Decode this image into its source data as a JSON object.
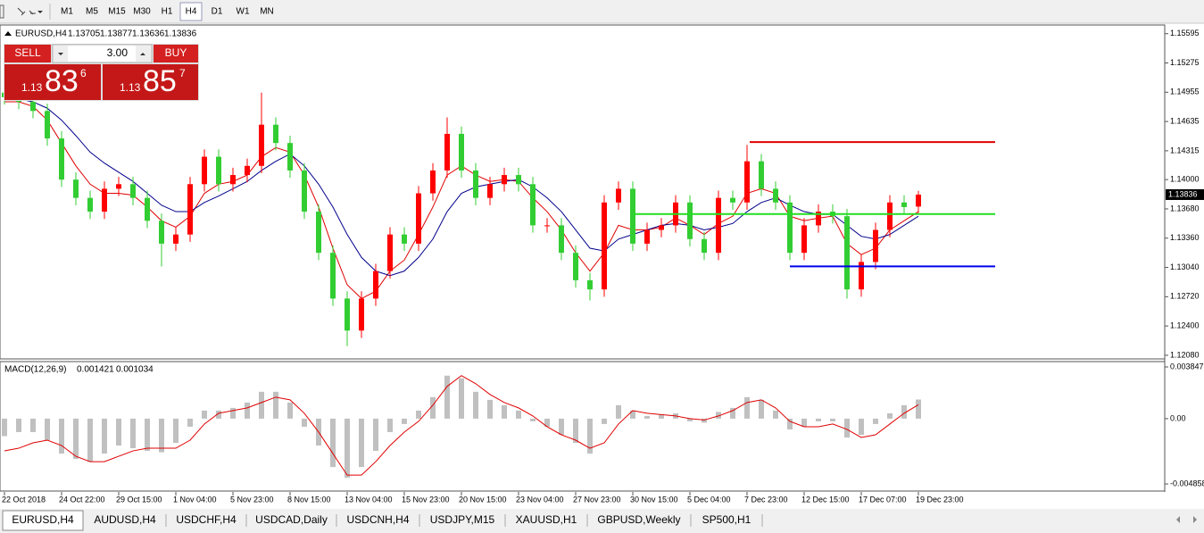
{
  "toolbar": {
    "timeframes": [
      "M1",
      "M5",
      "M15",
      "M30",
      "H1",
      "H4",
      "D1",
      "W1",
      "MN"
    ],
    "selected": 5
  },
  "trade_panel": {
    "sell": "SELL",
    "buy": "BUY",
    "lots": "3.00",
    "sell_price": {
      "prefix": "1.13",
      "main": "83",
      "sup": "6"
    },
    "buy_price": {
      "prefix": "1.13",
      "main": "85",
      "sup": "7"
    }
  },
  "chart_data": [
    {
      "type": "candlestick",
      "title": "EURUSD,H4",
      "header_values": [
        1.13705,
        1.13877,
        1.13636,
        1.13836
      ],
      "categories": [
        "22 Oct 2018",
        null,
        null,
        null,
        "24 Oct 22:00",
        null,
        null,
        null,
        "29 Oct 15:00",
        null,
        null,
        null,
        "1 Nov 04:00",
        null,
        null,
        null,
        "5 Nov 23:00",
        null,
        null,
        null,
        "8 Nov 15:00",
        null,
        null,
        null,
        "13 Nov 04:00",
        null,
        null,
        null,
        "15 Nov 23:00",
        null,
        null,
        null,
        "20 Nov 15:00",
        null,
        null,
        null,
        "23 Nov 04:00",
        null,
        null,
        null,
        "27 Nov 23:00",
        null,
        null,
        null,
        "30 Nov 15:00",
        null,
        null,
        null,
        "5 Dec 04:00",
        null,
        null,
        null,
        "7 Dec 23:00",
        null,
        null,
        null,
        "12 Dec 15:00",
        null,
        null,
        null,
        "17 Dec 07:00",
        null,
        null,
        null,
        "19 Dec 23:00"
      ],
      "open": [
        1.1495,
        1.149,
        1.1485,
        1.1475,
        1.1445,
        1.14,
        1.138,
        1.1365,
        1.139,
        1.1395,
        1.138,
        1.1355,
        1.133,
        1.134,
        1.1395,
        1.1425,
        1.1395,
        1.1405,
        1.1415,
        1.146,
        1.144,
        1.141,
        1.1365,
        1.132,
        1.127,
        1.1235,
        1.127,
        1.13,
        1.134,
        1.133,
        1.1385,
        1.141,
        1.145,
        1.141,
        1.138,
        1.1395,
        1.1405,
        1.1395,
        1.135,
        1.135,
        1.132,
        1.129,
        1.128,
        1.1375,
        1.139,
        1.133,
        1.1345,
        1.135,
        1.1375,
        1.1335,
        1.132,
        1.138,
        1.1375,
        1.142,
        1.139,
        1.1375,
        1.132,
        1.135,
        1.1365,
        1.136,
        1.128,
        1.131,
        1.1345,
        1.1375,
        1.13705
      ],
      "high": [
        1.1503,
        1.1498,
        1.1493,
        1.1483,
        1.1453,
        1.1408,
        1.1388,
        1.1398,
        1.1403,
        1.1403,
        1.1388,
        1.1363,
        1.1348,
        1.1403,
        1.1433,
        1.1433,
        1.1413,
        1.1423,
        1.1495,
        1.1468,
        1.1448,
        1.1418,
        1.1373,
        1.1328,
        1.1278,
        1.1278,
        1.1308,
        1.1348,
        1.1348,
        1.1393,
        1.1418,
        1.1468,
        1.1458,
        1.1418,
        1.1403,
        1.1413,
        1.1413,
        1.1403,
        1.1358,
        1.1358,
        1.1328,
        1.1298,
        1.1383,
        1.1398,
        1.1398,
        1.1353,
        1.1358,
        1.1383,
        1.1383,
        1.1343,
        1.1388,
        1.1388,
        1.1438,
        1.1428,
        1.1398,
        1.1383,
        1.1358,
        1.1373,
        1.1373,
        1.1368,
        1.1318,
        1.1353,
        1.1383,
        1.1383,
        1.13877
      ],
      "low": [
        1.1482,
        1.1477,
        1.1467,
        1.1437,
        1.1392,
        1.1372,
        1.1357,
        1.1357,
        1.1382,
        1.1372,
        1.1347,
        1.1305,
        1.1322,
        1.1332,
        1.1387,
        1.1387,
        1.1387,
        1.1397,
        1.1407,
        1.1432,
        1.1402,
        1.1357,
        1.1312,
        1.1262,
        1.1218,
        1.1227,
        1.1262,
        1.1292,
        1.1322,
        1.1322,
        1.1377,
        1.1402,
        1.1402,
        1.1372,
        1.1372,
        1.1387,
        1.1387,
        1.1342,
        1.1342,
        1.1312,
        1.1282,
        1.1268,
        1.1272,
        1.1367,
        1.1322,
        1.1322,
        1.1337,
        1.1342,
        1.1327,
        1.1312,
        1.1312,
        1.1367,
        1.1367,
        1.1382,
        1.1367,
        1.1312,
        1.1312,
        1.1342,
        1.1352,
        1.127,
        1.1272,
        1.1302,
        1.1337,
        1.1362,
        1.13636
      ],
      "close": [
        1.149,
        1.1485,
        1.1475,
        1.1445,
        1.14,
        1.138,
        1.1365,
        1.139,
        1.1395,
        1.138,
        1.1355,
        1.133,
        1.134,
        1.1395,
        1.1425,
        1.1395,
        1.1405,
        1.1415,
        1.146,
        1.144,
        1.141,
        1.1365,
        1.132,
        1.127,
        1.1235,
        1.127,
        1.13,
        1.134,
        1.133,
        1.1385,
        1.141,
        1.145,
        1.141,
        1.138,
        1.1395,
        1.1405,
        1.1395,
        1.135,
        1.135,
        1.132,
        1.129,
        1.128,
        1.1375,
        1.139,
        1.133,
        1.1345,
        1.135,
        1.1375,
        1.1335,
        1.132,
        1.138,
        1.1375,
        1.142,
        1.139,
        1.1375,
        1.132,
        1.135,
        1.1365,
        1.136,
        1.128,
        1.131,
        1.1345,
        1.1375,
        1.137,
        1.13836
      ],
      "up_color": "#ff0000",
      "down_color": "#32cd32",
      "series": [
        {
          "color": "#e00000",
          "values": [
            1.1485,
            1.1485,
            1.148,
            1.1465,
            1.144,
            1.1415,
            1.1395,
            1.1385,
            1.1385,
            1.1383,
            1.137,
            1.1355,
            1.1348,
            1.136,
            1.1385,
            1.1395,
            1.1398,
            1.1405,
            1.1425,
            1.1435,
            1.143,
            1.1405,
            1.137,
            1.1325,
            1.1285,
            1.127,
            1.1278,
            1.13,
            1.1312,
            1.134,
            1.137,
            1.1405,
            1.1415,
            1.1405,
            1.1398,
            1.14,
            1.1398,
            1.138,
            1.1365,
            1.1345,
            1.132,
            1.13,
            1.132,
            1.135,
            1.1345,
            1.1345,
            1.1348,
            1.1358,
            1.135,
            1.134,
            1.1352,
            1.136,
            1.1385,
            1.139,
            1.1385,
            1.136,
            1.1355,
            1.1358,
            1.136,
            1.133,
            1.1318,
            1.1325,
            1.1345,
            1.1355,
            1.1365
          ]
        },
        {
          "color": "#00008b",
          "values": [
            1.149,
            1.1488,
            1.1485,
            1.1478,
            1.1465,
            1.1448,
            1.143,
            1.1418,
            1.1408,
            1.1398,
            1.1385,
            1.1372,
            1.1365,
            1.1365,
            1.1375,
            1.1382,
            1.139,
            1.1398,
            1.141,
            1.142,
            1.1428,
            1.1415,
            1.1395,
            1.137,
            1.134,
            1.1315,
            1.13,
            1.1295,
            1.13,
            1.1315,
            1.1335,
            1.1365,
            1.1385,
            1.1392,
            1.1395,
            1.1398,
            1.14,
            1.1392,
            1.138,
            1.1365,
            1.1345,
            1.1325,
            1.1322,
            1.1335,
            1.134,
            1.1345,
            1.135,
            1.1352,
            1.135,
            1.1345,
            1.1348,
            1.1352,
            1.1365,
            1.1375,
            1.138,
            1.1372,
            1.1365,
            1.1362,
            1.1362,
            1.135,
            1.1338,
            1.1335,
            1.134,
            1.135,
            1.136
          ]
        }
      ],
      "hlines": [
        {
          "value": 1.1441,
          "color": "#e00000"
        },
        {
          "value": 1.13624,
          "color": "#22dd22"
        },
        {
          "value": 1.13051,
          "color": "#0000ee"
        }
      ],
      "ylim": [
        1.1205,
        1.1568
      ],
      "yticks": [
        1.15595,
        1.15275,
        1.14955,
        1.14635,
        1.14315,
        {
          "value": 1.14,
          "label": "1.14000"
        },
        {
          "value": 1.1368,
          "label": "1.13680"
        },
        {
          "value": 1.1336,
          "label": "1.13360"
        },
        {
          "value": 1.1304,
          "label": "1.13040"
        },
        {
          "value": 1.1272,
          "label": "1.12720"
        },
        {
          "value": 1.124,
          "label": "1.12400"
        },
        {
          "value": 1.1208,
          "label": "1.12080"
        }
      ]
    },
    {
      "type": "macd",
      "title": "MACD(12,26,9)",
      "header_values": [
        0.001421,
        0.001034
      ],
      "histogram": {
        "color": "#c0c0c0",
        "values": [
          -0.0013,
          -0.001,
          -0.001,
          -0.0016,
          -0.0026,
          -0.003,
          -0.0032,
          -0.0026,
          -0.002,
          -0.0022,
          -0.0024,
          -0.0025,
          -0.0018,
          -0.0006,
          0.0006,
          0.0006,
          0.0008,
          0.0012,
          0.002,
          0.002,
          0.0012,
          -0.0006,
          -0.002,
          -0.0036,
          -0.0044,
          -0.0036,
          -0.0024,
          -0.001,
          -0.0004,
          0.0006,
          0.0016,
          0.0032,
          0.003,
          0.002,
          0.0014,
          0.001,
          0.0006,
          -0.0002,
          -0.0006,
          -0.0012,
          -0.0018,
          -0.0026,
          -0.0004,
          0.001,
          0.0006,
          0.0002,
          0.0003,
          0.0004,
          -0.0002,
          -0.0003,
          0.0005,
          0.0008,
          0.0016,
          0.0014,
          0.0006,
          -0.0008,
          -0.0006,
          -0.0002,
          -0.0002,
          -0.0014,
          -0.0012,
          -0.0004,
          0.0004,
          0.001,
          0.001421
        ]
      },
      "signal": {
        "color": "#e00000",
        "values": [
          -0.0024,
          -0.0022,
          -0.0018,
          -0.0016,
          -0.002,
          -0.0028,
          -0.0032,
          -0.0032,
          -0.0028,
          -0.0024,
          -0.0022,
          -0.0022,
          -0.0022,
          -0.0016,
          -0.0004,
          0.0004,
          0.0006,
          0.0008,
          0.0012,
          0.0016,
          0.0014,
          0.0004,
          -0.001,
          -0.0026,
          -0.0042,
          -0.0042,
          -0.0032,
          -0.002,
          -0.001,
          -0.0002,
          0.001,
          0.0024,
          0.0032,
          0.0026,
          0.0018,
          0.0012,
          0.0008,
          0.0002,
          -0.0006,
          -0.0012,
          -0.0016,
          -0.0022,
          -0.0018,
          -0.0004,
          0.0006,
          0.0004,
          0.0003,
          0.0002,
          0.0,
          -0.0001,
          0.0002,
          0.0006,
          0.0012,
          0.0014,
          0.0008,
          -0.0002,
          -0.0006,
          -0.0006,
          -0.0004,
          -0.0008,
          -0.0014,
          -0.0012,
          -0.0004,
          0.0004,
          0.001034
        ]
      },
      "ylim": [
        -0.00532,
        0.00418
      ],
      "yticks": [
        0.003847,
        {
          "value": 0,
          "label": "0.00"
        },
        -0.004858
      ]
    }
  ],
  "tabs": [
    "EURUSD,H4",
    "AUDUSD,H4",
    "USDCHF,H4",
    "USDCAD,Daily",
    "USDCNH,H4",
    "USDJPY,M15",
    "XAUUSD,H1",
    "GBPUSD,Weekly",
    "SP500,H1"
  ],
  "selected_tab": 0
}
